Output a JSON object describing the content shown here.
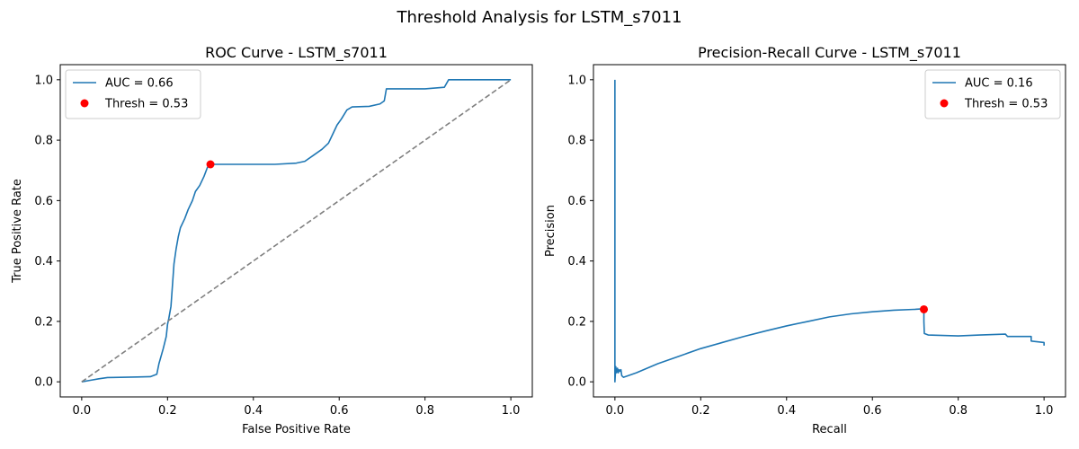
{
  "figure": {
    "suptitle": "Threshold Analysis for LSTM_s7011"
  },
  "chart_data": [
    {
      "type": "line",
      "title": "ROC Curve - LSTM_s7011",
      "xlabel": "False Positive Rate",
      "ylabel": "True Positive Rate",
      "xlim": [
        -0.05,
        1.05
      ],
      "ylim": [
        -0.05,
        1.05
      ],
      "xticks": [
        "0.0",
        "0.2",
        "0.4",
        "0.6",
        "0.8",
        "1.0"
      ],
      "yticks": [
        "0.0",
        "0.2",
        "0.4",
        "0.6",
        "0.8",
        "1.0"
      ],
      "grid": false,
      "legend_position": "upper left",
      "series": [
        {
          "name": "AUC = 0.66",
          "color": "#1f77b4",
          "points": [
            [
              0,
              0
            ],
            [
              0.02,
              0.005
            ],
            [
              0.04,
              0.01
            ],
            [
              0.06,
              0.014
            ],
            [
              0.09,
              0.015
            ],
            [
              0.13,
              0.016
            ],
            [
              0.16,
              0.017
            ],
            [
              0.175,
              0.025
            ],
            [
              0.18,
              0.06
            ],
            [
              0.19,
              0.11
            ],
            [
              0.197,
              0.15
            ],
            [
              0.2,
              0.19
            ],
            [
              0.203,
              0.21
            ],
            [
              0.208,
              0.25
            ],
            [
              0.212,
              0.33
            ],
            [
              0.215,
              0.39
            ],
            [
              0.22,
              0.44
            ],
            [
              0.225,
              0.48
            ],
            [
              0.23,
              0.51
            ],
            [
              0.24,
              0.54
            ],
            [
              0.248,
              0.57
            ],
            [
              0.258,
              0.6
            ],
            [
              0.265,
              0.63
            ],
            [
              0.275,
              0.65
            ],
            [
              0.285,
              0.68
            ],
            [
              0.293,
              0.71
            ],
            [
              0.3,
              0.72
            ],
            [
              0.38,
              0.72
            ],
            [
              0.45,
              0.72
            ],
            [
              0.5,
              0.724
            ],
            [
              0.52,
              0.73
            ],
            [
              0.54,
              0.75
            ],
            [
              0.56,
              0.77
            ],
            [
              0.575,
              0.79
            ],
            [
              0.585,
              0.82
            ],
            [
              0.595,
              0.85
            ],
            [
              0.605,
              0.87
            ],
            [
              0.618,
              0.9
            ],
            [
              0.63,
              0.91
            ],
            [
              0.67,
              0.912
            ],
            [
              0.695,
              0.92
            ],
            [
              0.705,
              0.93
            ],
            [
              0.71,
              0.97
            ],
            [
              0.75,
              0.97
            ],
            [
              0.8,
              0.97
            ],
            [
              0.845,
              0.975
            ],
            [
              0.855,
              1.0
            ],
            [
              0.9,
              1.0
            ],
            [
              0.95,
              1.0
            ],
            [
              1.0,
              1.0
            ]
          ]
        },
        {
          "name": "",
          "color": "#808080",
          "dashed": true,
          "points": [
            [
              0,
              0
            ],
            [
              1,
              1
            ]
          ]
        }
      ],
      "markers": [
        {
          "name": "Thresh = 0.53",
          "color": "#ff0000",
          "x": 0.3,
          "y": 0.72
        }
      ]
    },
    {
      "type": "line",
      "title": "Precision-Recall Curve - LSTM_s7011",
      "xlabel": "Recall",
      "ylabel": "Precision",
      "xlim": [
        -0.05,
        1.05
      ],
      "ylim": [
        -0.05,
        1.05
      ],
      "xticks": [
        "0.0",
        "0.2",
        "0.4",
        "0.6",
        "0.8",
        "1.0"
      ],
      "yticks": [
        "0.0",
        "0.2",
        "0.4",
        "0.6",
        "0.8",
        "1.0"
      ],
      "grid": false,
      "legend_position": "upper right",
      "series": [
        {
          "name": "AUC = 0.16",
          "color": "#1f77b4",
          "points": [
            [
              0,
              1.0
            ],
            [
              0,
              0.0
            ],
            [
              0.002,
              0.05
            ],
            [
              0.004,
              0.03
            ],
            [
              0.006,
              0.045
            ],
            [
              0.008,
              0.03
            ],
            [
              0.01,
              0.04
            ],
            [
              0.012,
              0.035
            ],
            [
              0.014,
              0.04
            ],
            [
              0.016,
              0.02
            ],
            [
              0.02,
              0.015
            ],
            [
              0.03,
              0.02
            ],
            [
              0.05,
              0.03
            ],
            [
              0.1,
              0.06
            ],
            [
              0.15,
              0.085
            ],
            [
              0.2,
              0.11
            ],
            [
              0.25,
              0.13
            ],
            [
              0.3,
              0.15
            ],
            [
              0.35,
              0.168
            ],
            [
              0.4,
              0.185
            ],
            [
              0.45,
              0.2
            ],
            [
              0.5,
              0.215
            ],
            [
              0.55,
              0.225
            ],
            [
              0.6,
              0.232
            ],
            [
              0.65,
              0.237
            ],
            [
              0.7,
              0.24
            ],
            [
              0.72,
              0.242
            ],
            [
              0.72,
              0.2
            ],
            [
              0.721,
              0.16
            ],
            [
              0.73,
              0.155
            ],
            [
              0.8,
              0.152
            ],
            [
              0.85,
              0.155
            ],
            [
              0.91,
              0.158
            ],
            [
              0.915,
              0.15
            ],
            [
              0.97,
              0.15
            ],
            [
              0.97,
              0.135
            ],
            [
              1.0,
              0.13
            ],
            [
              1.0,
              0.12
            ]
          ]
        }
      ],
      "markers": [
        {
          "name": "Thresh = 0.53",
          "color": "#ff0000",
          "x": 0.72,
          "y": 0.24
        }
      ]
    }
  ]
}
